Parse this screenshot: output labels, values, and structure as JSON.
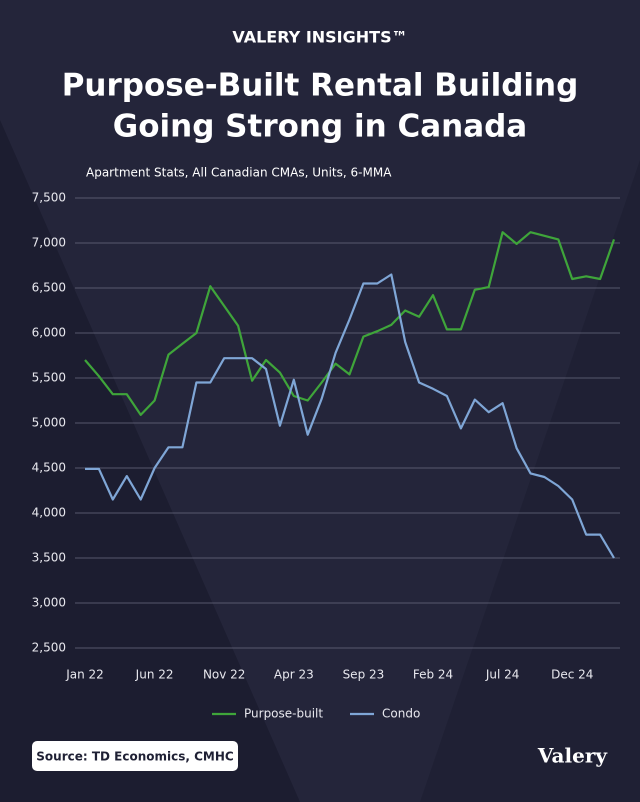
{
  "brand": "VALERY INSIGHTS™",
  "logo": "Valery",
  "source": "Source: TD Economics, CMHC",
  "chart_data": {
    "type": "line",
    "title": [
      "Purpose-Built Rental Building",
      "Going Strong in Canada"
    ],
    "subtitle": "Apartment Stats, All Canadian CMAs, Units, 6-MMA",
    "categories": [
      "Jan 22",
      null,
      null,
      null,
      null,
      "Jun 22",
      null,
      null,
      null,
      null,
      "Nov 22",
      null,
      null,
      null,
      null,
      "Apr 23",
      null,
      null,
      null,
      null,
      "Sep 23",
      null,
      null,
      null,
      null,
      "Feb 24",
      null,
      null,
      null,
      null,
      "Jul 24",
      null,
      null,
      null,
      null,
      "Dec 24",
      null,
      null,
      null
    ],
    "series": [
      {
        "name": "Purpose-built",
        "color": "#3fa53a",
        "values": [
          5700,
          5520,
          5320,
          5320,
          5090,
          5250,
          5760,
          5880,
          6000,
          6520,
          6300,
          6080,
          5470,
          5700,
          5560,
          5300,
          5250,
          5450,
          5660,
          5540,
          5960,
          6020,
          6090,
          6250,
          6180,
          6420,
          6040,
          6040,
          6480,
          6510,
          7120,
          6990,
          7120,
          7080,
          7040,
          6600,
          6630,
          6600,
          7040
        ]
      },
      {
        "name": "Condo",
        "color": "#7fa6d6",
        "values": [
          4490,
          4490,
          4150,
          4410,
          4150,
          4500,
          4730,
          4730,
          5450,
          5450,
          5720,
          5720,
          5720,
          5600,
          4970,
          5480,
          4870,
          5270,
          5780,
          6150,
          6550,
          6550,
          6650,
          5900,
          5450,
          5380,
          5300,
          4940,
          5260,
          5120,
          5220,
          4720,
          4440,
          4400,
          4300,
          4150,
          3760,
          3760,
          3500
        ]
      }
    ],
    "ylim": [
      2500,
      7500
    ],
    "yticks": [
      {
        "value": 2500,
        "label": "2,500"
      },
      {
        "value": 3000,
        "label": "3,000"
      },
      {
        "value": 3500,
        "label": "3,500"
      },
      {
        "value": 4000,
        "label": "4,000"
      },
      {
        "value": 4500,
        "label": "4,500"
      },
      {
        "value": 5000,
        "label": "5,000"
      },
      {
        "value": 5500,
        "label": "5,500"
      },
      {
        "value": 6000,
        "label": "6,000"
      },
      {
        "value": 6500,
        "label": "6,500"
      },
      {
        "value": 7000,
        "label": "7,000"
      },
      {
        "value": 7500,
        "label": "7,500"
      }
    ],
    "grid": true
  }
}
